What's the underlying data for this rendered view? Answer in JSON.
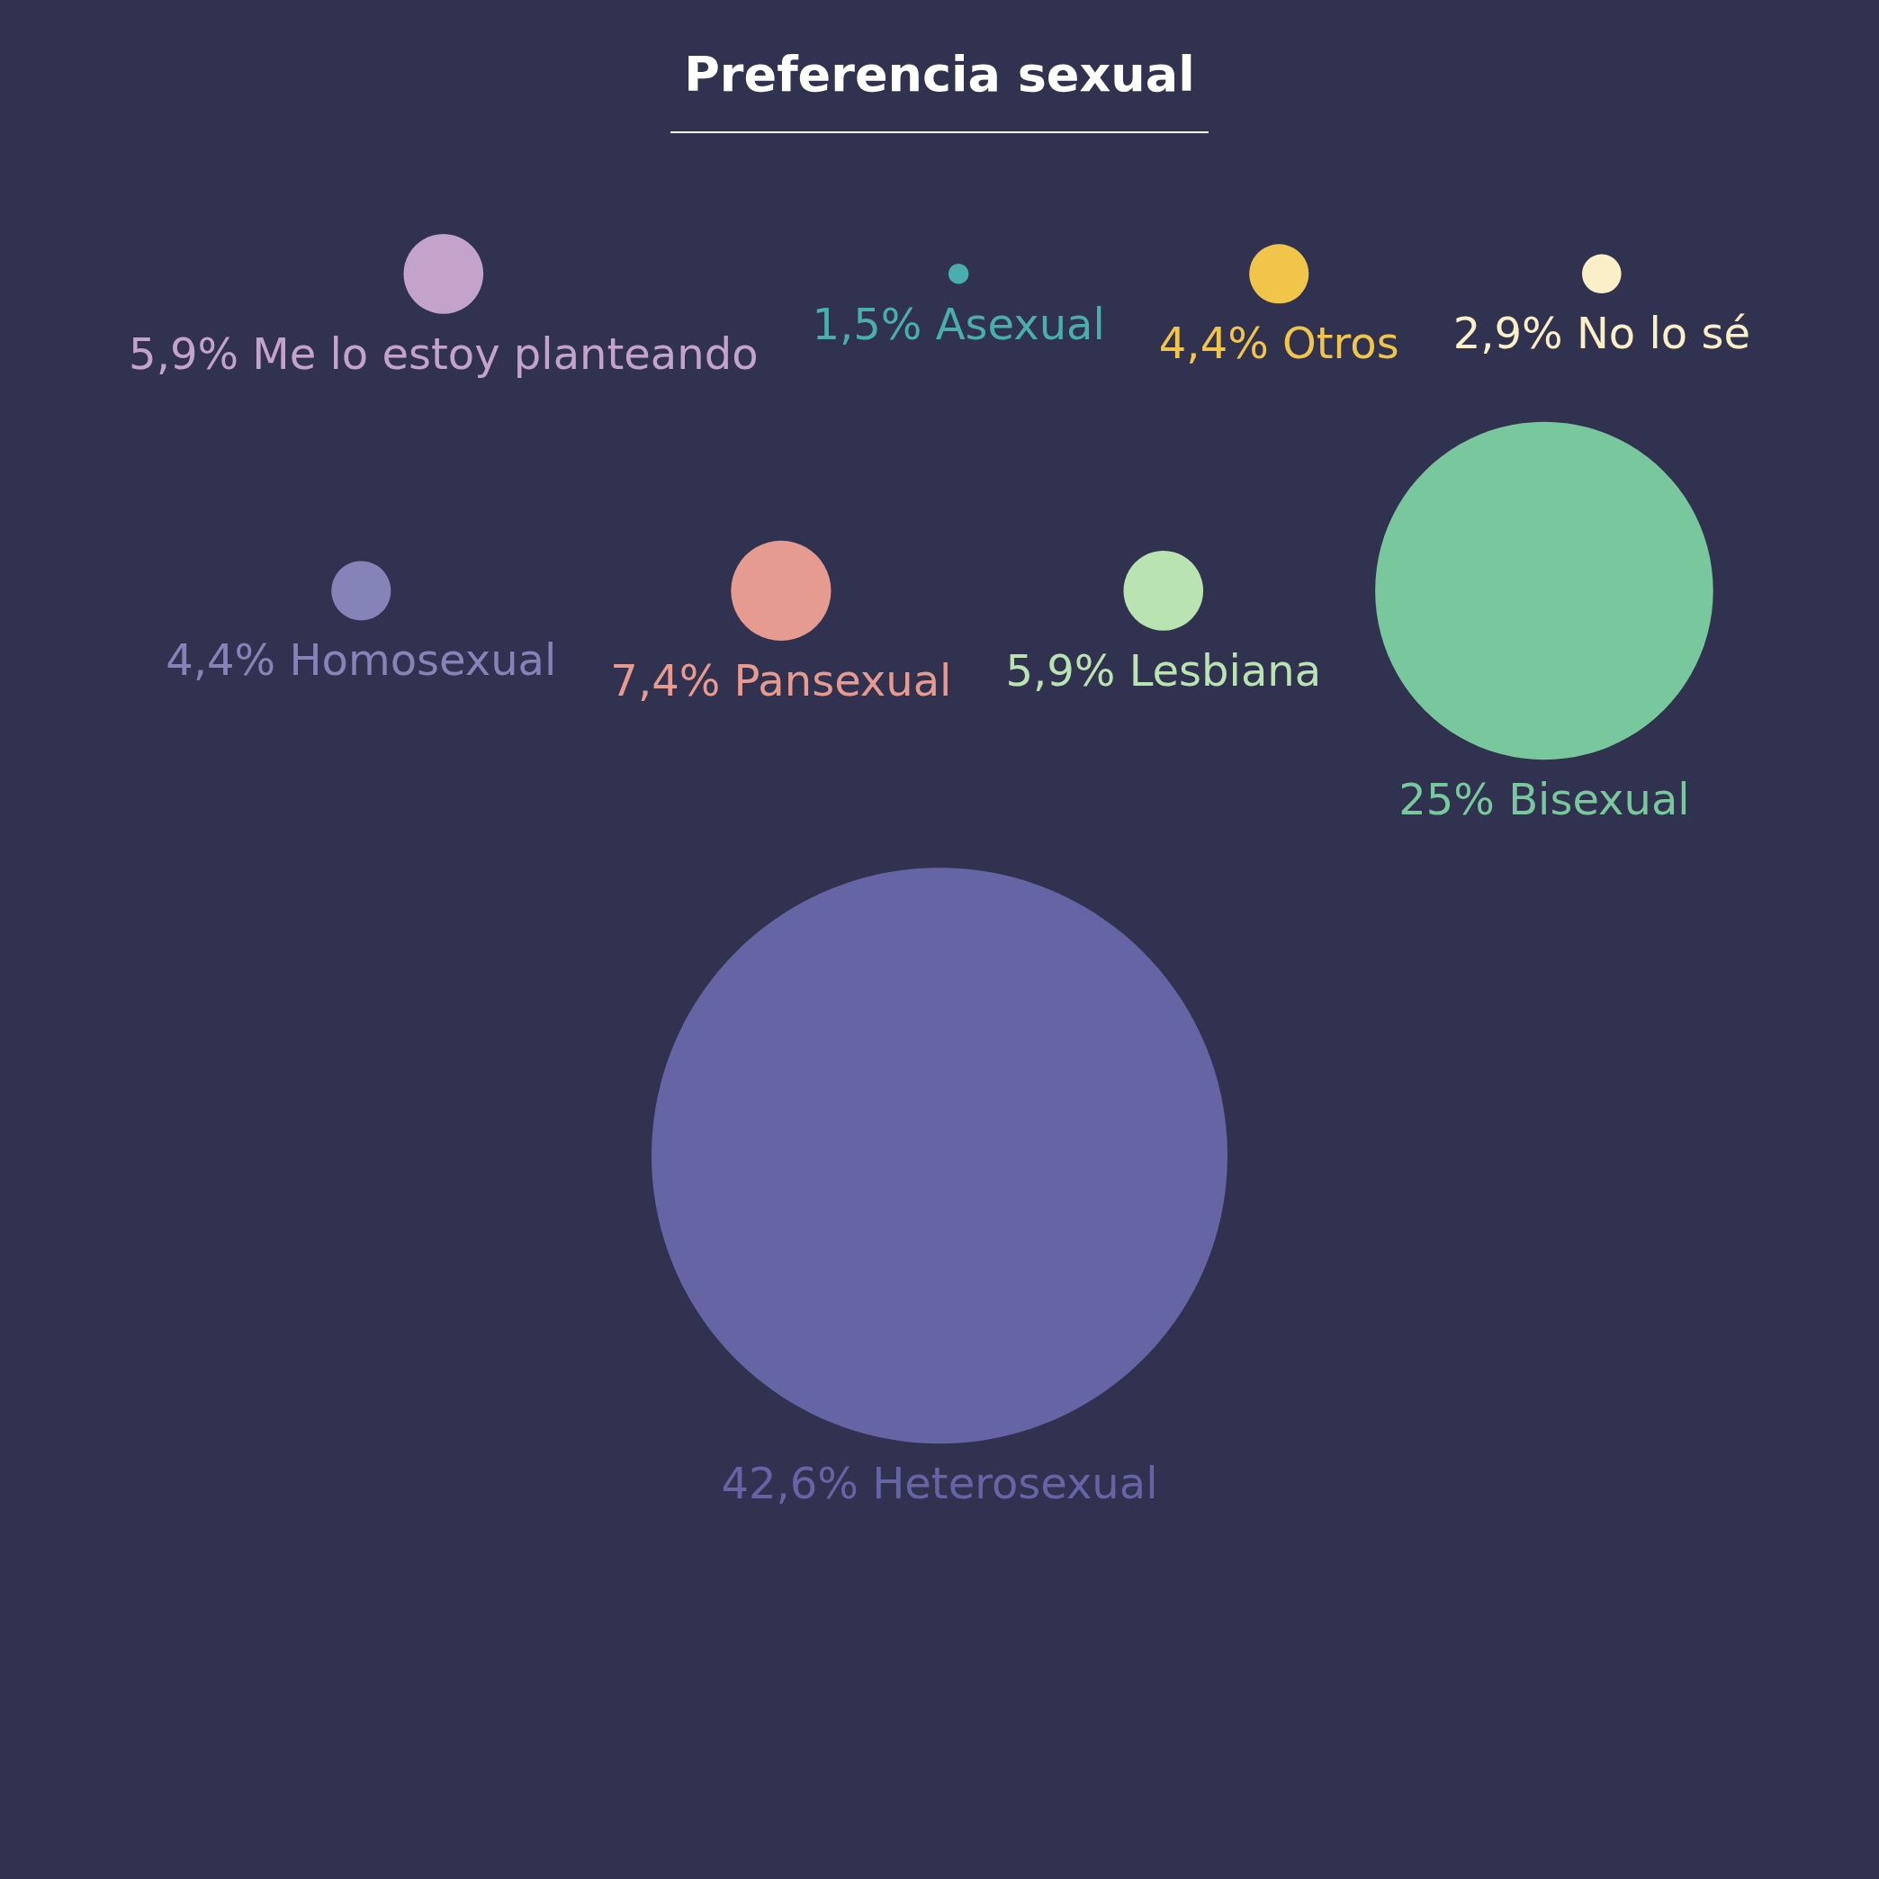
{
  "chart_data": {
    "type": "other",
    "title": "Preferencia sexual",
    "categories": [
      "Me lo estoy planteando",
      "Asexual",
      "Otros",
      "No lo sé",
      "Homosexual",
      "Pansexual",
      "Lesbiana",
      "Bisexual",
      "Heterosexual"
    ],
    "values": [
      5.9,
      1.5,
      4.4,
      2.9,
      4.4,
      7.4,
      5.9,
      25,
      42.6
    ],
    "value_labels": [
      "5,9%",
      "1,5%",
      "4,4%",
      "2,9%",
      "4,4%",
      "7,4%",
      "5,9%",
      "25%",
      "42,6%"
    ],
    "colors": [
      "#c3a3c9",
      "#4aaeae",
      "#f0c54a",
      "#fbefc7",
      "#8584b9",
      "#e69b91",
      "#b9e3b0",
      "#79c79c",
      "#6565a5"
    ]
  }
}
